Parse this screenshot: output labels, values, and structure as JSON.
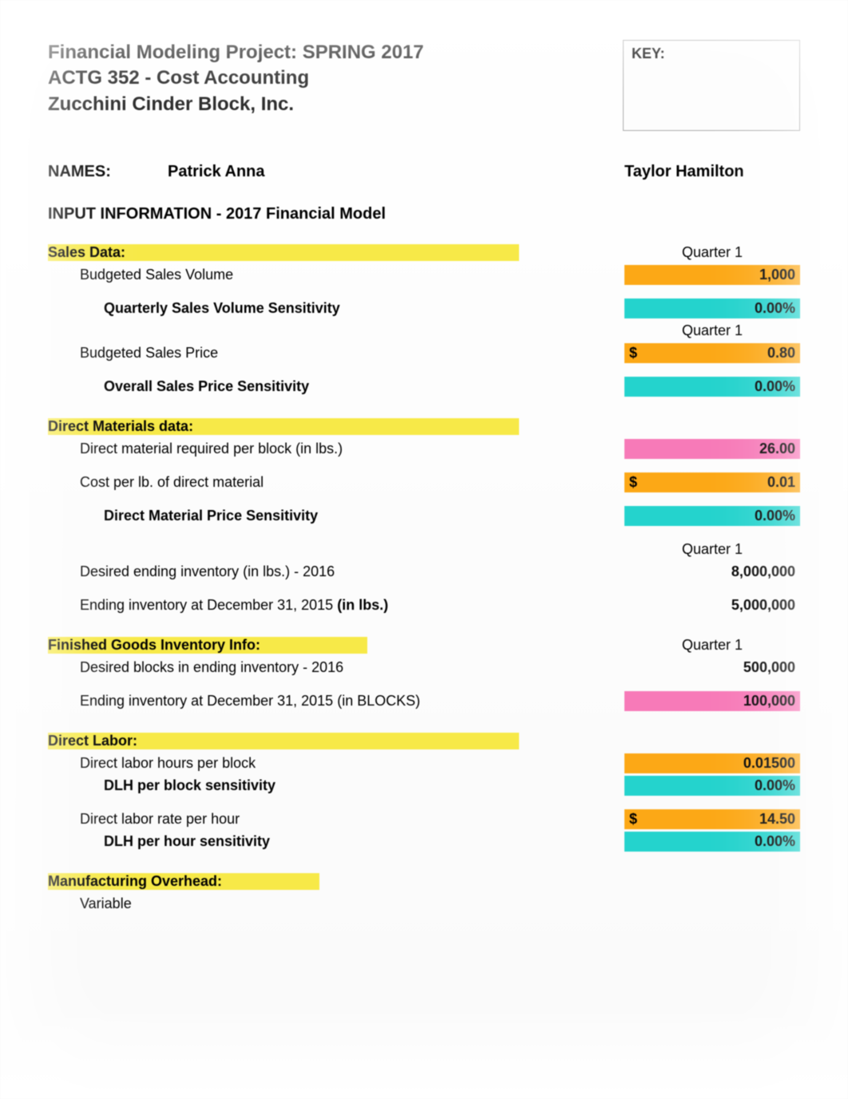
{
  "header": {
    "title_line1": "Financial Modeling Project:  SPRING 2017",
    "title_line2": "ACTG 352 - Cost Accounting",
    "title_line3": "Zucchini Cinder Block, Inc.",
    "key_label": "KEY:"
  },
  "names": {
    "label": "NAMES:",
    "name1": "Patrick Anna",
    "name2": "Taylor Hamilton"
  },
  "input_section_title": "INPUT INFORMATION - 2017 Financial Model",
  "sales": {
    "header": "Sales Data:",
    "quarter_label": "Quarter 1",
    "budgeted_volume_label": "Budgeted Sales Volume",
    "budgeted_volume_value": "1,000",
    "volume_sensitivity_label": "Quarterly Sales Volume Sensitivity",
    "volume_sensitivity_value": "0.00%",
    "quarter_label2": "Quarter 1",
    "budgeted_price_label": "Budgeted Sales Price",
    "budgeted_price_dollar": "$",
    "budgeted_price_value": "0.80",
    "price_sensitivity_label": "Overall Sales Price Sensitivity",
    "price_sensitivity_value": "0.00%"
  },
  "materials": {
    "header": "Direct Materials data:",
    "per_block_label": "Direct material required per block (in lbs.)",
    "per_block_value": "26.00",
    "cost_label": "Cost per lb. of direct material",
    "cost_dollar": "$",
    "cost_value": "0.01",
    "price_sens_label": "Direct Material Price Sensitivity",
    "price_sens_value": "0.00%",
    "quarter_label": "Quarter 1",
    "end_inv_2016_label": "Desired ending inventory (in lbs.) - 2016",
    "end_inv_2016_value": "8,000,000",
    "end_inv_2015_label_prefix": "Ending inventory at December 31, 2015 ",
    "end_inv_2015_label_bold": "(in lbs.)",
    "end_inv_2015_value": "5,000,000"
  },
  "fg": {
    "header": "Finished Goods Inventory Info:",
    "quarter_label": "Quarter 1",
    "desired_blocks_label": "Desired blocks in ending inventory - 2016",
    "desired_blocks_value": "500,000",
    "end_blocks_2015_label": "Ending inventory at December 31, 2015 (in BLOCKS)",
    "end_blocks_2015_value": "100,000"
  },
  "labor": {
    "header": "Direct Labor:",
    "hours_label": "Direct labor hours per block",
    "hours_value": "0.01500",
    "hours_sens_label": "DLH per block sensitivity",
    "hours_sens_value": "0.00%",
    "rate_label": "Direct labor rate per hour",
    "rate_dollar": "$",
    "rate_value": "14.50",
    "rate_sens_label": "DLH per hour sensitivity",
    "rate_sens_value": "0.00%"
  },
  "overhead": {
    "header": "Manufacturing Overhead:",
    "variable_label": "Variable"
  },
  "colors": {
    "yellow": "#f7e948",
    "orange": "#fca816",
    "cyan": "#24d3cd",
    "pink": "#f77ab8"
  }
}
